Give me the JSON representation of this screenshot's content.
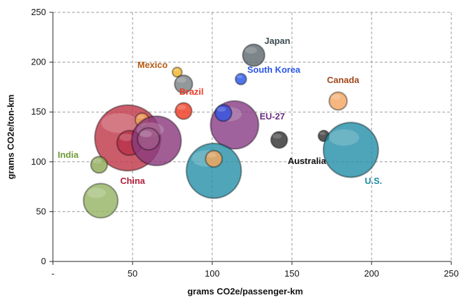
{
  "chart_data": {
    "type": "scatter",
    "subtype": "bubble",
    "title": "",
    "xlabel": "grams CO2e/passenger-km",
    "ylabel": "grams CO2e/ton-km",
    "xlim": [
      0,
      250
    ],
    "ylim": [
      0,
      250
    ],
    "x_ticks": [
      0,
      50,
      100,
      150,
      200,
      250
    ],
    "x_tick_labels": [
      "-",
      "50",
      "100",
      "150",
      "200",
      "250"
    ],
    "y_ticks": [
      0,
      50,
      100,
      150,
      200,
      250
    ],
    "y_tick_labels": [
      "0",
      "50",
      "100",
      "150",
      "200",
      "250"
    ],
    "grid": true,
    "points": [
      {
        "name": "China",
        "x": 47,
        "y": 124,
        "size": 48,
        "color": "#c0394b",
        "label": "China",
        "label_color": "#b01e38"
      },
      {
        "name": "China-inner",
        "x": 48,
        "y": 119,
        "size": 18,
        "color": "#b8314a",
        "label": "",
        "label_color": ""
      },
      {
        "name": "Brazil-orange",
        "x": 56,
        "y": 142,
        "size": 10,
        "color": "#f2a35a",
        "label": "",
        "label_color": ""
      },
      {
        "name": "EU-27-purple2",
        "x": 65,
        "y": 121,
        "size": 36,
        "color": "#8b3a7e",
        "label": "",
        "label_color": ""
      },
      {
        "name": "EU-27-inner",
        "x": 60,
        "y": 123,
        "size": 16,
        "color": "#a05a8a",
        "label": "",
        "label_color": ""
      },
      {
        "name": "India",
        "x": 29,
        "y": 97,
        "size": 12,
        "color": "#8ea855",
        "label": "India",
        "label_color": "#6f9a3a"
      },
      {
        "name": "India-large",
        "x": 30,
        "y": 61,
        "size": 25,
        "color": "#96b465",
        "label": "",
        "label_color": ""
      },
      {
        "name": "Mexico",
        "x": 78,
        "y": 190,
        "size": 7,
        "color": "#f0b428",
        "label": "Mexico",
        "label_color": "#b45a14"
      },
      {
        "name": "Mexico-gray",
        "x": 82,
        "y": 178,
        "size": 13,
        "color": "#7a8385",
        "label": "",
        "label_color": ""
      },
      {
        "name": "Brazil",
        "x": 82,
        "y": 151,
        "size": 12,
        "color": "#ee3a22",
        "label": "Brazil",
        "label_color": "#ee3a22"
      },
      {
        "name": "Japan",
        "x": 126,
        "y": 207,
        "size": 16,
        "color": "#5f6a70",
        "label": "Japan",
        "label_color": "#3a4a52"
      },
      {
        "name": "South Korea",
        "x": 118,
        "y": 183,
        "size": 8,
        "color": "#2a55e6",
        "label": "South Korea",
        "label_color": "#2a55e6"
      },
      {
        "name": "EU-27",
        "x": 114,
        "y": 137,
        "size": 35,
        "color": "#8a3f87",
        "label": "EU-27",
        "label_color": "#6a2e82"
      },
      {
        "name": "EU-27-blue",
        "x": 107,
        "y": 149,
        "size": 12,
        "color": "#2f4fe0",
        "label": "",
        "label_color": ""
      },
      {
        "name": "Australia",
        "x": 142,
        "y": 122,
        "size": 12,
        "color": "#333333",
        "label": "Australia",
        "label_color": "#111111"
      },
      {
        "name": "Teal-center",
        "x": 101,
        "y": 91,
        "size": 40,
        "color": "#2a93a8",
        "label": "",
        "label_color": ""
      },
      {
        "name": "Teal-orange",
        "x": 101,
        "y": 103,
        "size": 12,
        "color": "#f2a35a",
        "label": "",
        "label_color": ""
      },
      {
        "name": "Canada",
        "x": 179,
        "y": 161,
        "size": 13,
        "color": "#f4a664",
        "label": "Canada",
        "label_color": "#a0471a"
      },
      {
        "name": "Canada-dark",
        "x": 170,
        "y": 126,
        "size": 8,
        "color": "#333333",
        "label": "",
        "label_color": ""
      },
      {
        "name": "U.S.",
        "x": 187,
        "y": 112,
        "size": 40,
        "color": "#2790a8",
        "label": "U.S.",
        "label_color": "#1e8aa4"
      }
    ]
  }
}
